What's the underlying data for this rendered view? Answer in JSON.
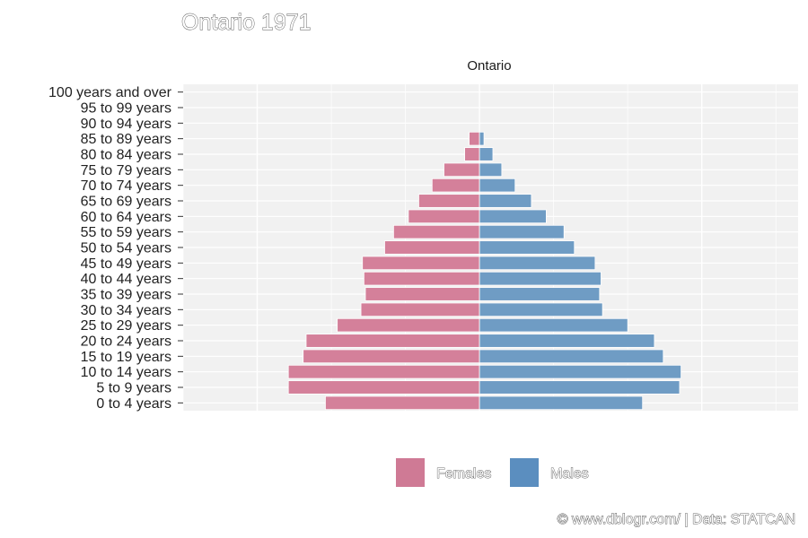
{
  "chart_data": {
    "type": "bar",
    "title": "Ontario 1971",
    "panel_label": "Ontario",
    "categories": [
      "0 to 4 years",
      "5 to 9 years",
      "10 to 14 years",
      "15 to 19 years",
      "20 to 24 years",
      "25 to 29 years",
      "30 to 34 years",
      "35 to 39 years",
      "40 to 44 years",
      "45 to 49 years",
      "50 to 54 years",
      "55 to 59 years",
      "60 to 64 years",
      "65 to 69 years",
      "70 to 74 years",
      "75 to 79 years",
      "80 to 84 years",
      "85 to 89 years",
      "90 to 94 years",
      "95 to 99 years",
      "100 years and over"
    ],
    "series": [
      {
        "name": "Females",
        "color": "#d4809a",
        "values": [
          -104,
          -129,
          -129,
          -119,
          -117,
          -96,
          -80,
          -77,
          -78,
          -79,
          -64,
          -58,
          -48,
          -41,
          -32,
          -24,
          -10,
          -7,
          0,
          0,
          0
        ]
      },
      {
        "name": "Males",
        "color": "#6f9cc4",
        "values": [
          110,
          135,
          136,
          124,
          118,
          100,
          83,
          81,
          82,
          78,
          64,
          57,
          45,
          35,
          24,
          15,
          9,
          3,
          0,
          0,
          0
        ]
      }
    ],
    "xlim": [
      -200,
      215
    ],
    "grid": true,
    "legend_position": "bottom"
  },
  "legend": {
    "items": [
      {
        "label": "Females",
        "color": "#cf7a95"
      },
      {
        "label": "Males",
        "color": "#5b8ebf"
      }
    ]
  },
  "caption": "© www.dblogr.com/ | Data: STATCAN"
}
